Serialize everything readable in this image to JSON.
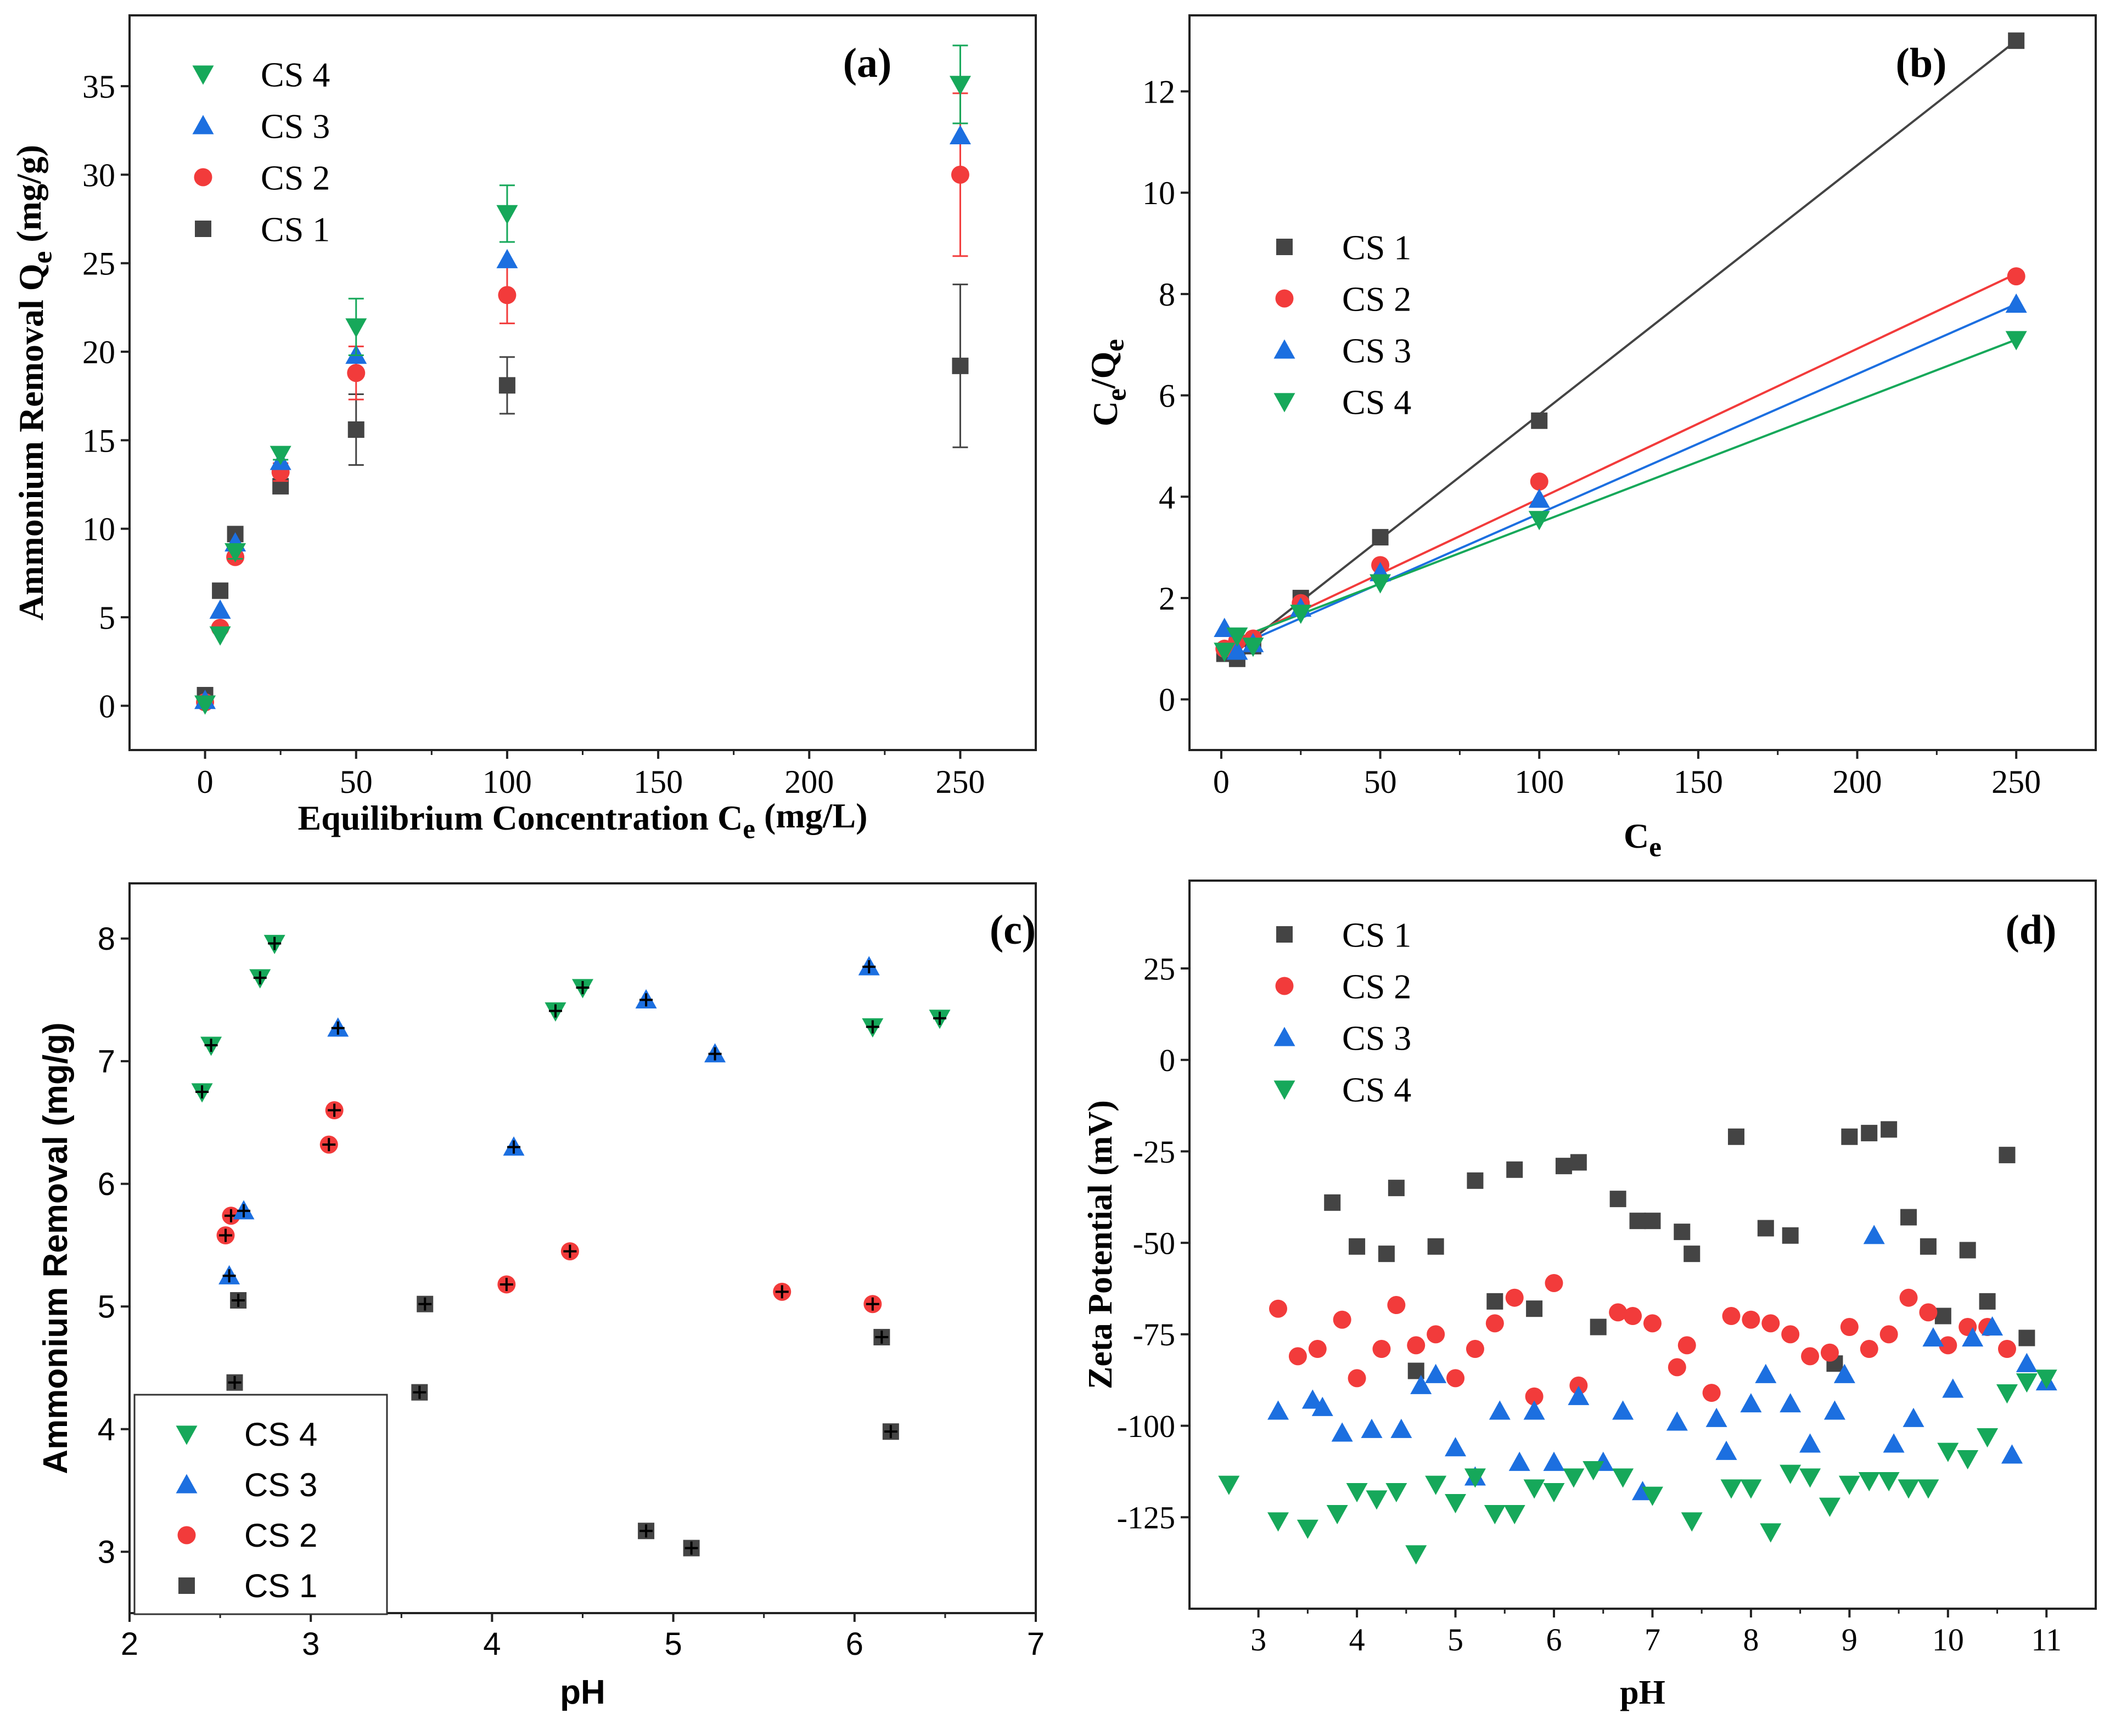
{
  "colors": {
    "cs1": "#444444",
    "cs2": "#f23b3b",
    "cs3": "#1c6fe0",
    "cs4": "#16a85a",
    "cross": "#000000"
  },
  "chart_data": [
    {
      "id": "a",
      "type": "scatter",
      "panel_label": "(a)",
      "xlabel": "Equilibrium Concentration C_e (mg/L)",
      "ylabel": "Ammonium Removal Q_e (mg/g)",
      "xlim": [
        -25,
        275
      ],
      "ylim": [
        -2.5,
        39
      ],
      "xticks": [
        0,
        50,
        100,
        150,
        200,
        250
      ],
      "yticks": [
        0,
        5,
        10,
        15,
        20,
        25,
        30,
        35
      ],
      "legend": [
        "CS 4",
        "CS 3",
        "CS 2",
        "CS 1"
      ],
      "legend_position": "top-left",
      "series": [
        {
          "name": "CS 1",
          "marker": "square",
          "x": [
            0,
            5,
            10,
            25,
            50,
            100,
            250
          ],
          "y": [
            0.6,
            6.5,
            9.7,
            12.4,
            15.6,
            18.1,
            19.2
          ],
          "err": [
            0,
            0,
            0,
            0.4,
            2.0,
            1.6,
            4.6
          ]
        },
        {
          "name": "CS 2",
          "marker": "circle",
          "x": [
            0,
            5,
            10,
            25,
            50,
            100,
            250
          ],
          "y": [
            0.2,
            4.4,
            8.4,
            13.2,
            18.8,
            23.2,
            30.0
          ],
          "err": [
            0,
            0,
            0,
            0.5,
            1.5,
            1.6,
            4.6
          ]
        },
        {
          "name": "CS 3",
          "marker": "triangle-up",
          "x": [
            0,
            5,
            10,
            25,
            50,
            100,
            250
          ],
          "y": [
            0.3,
            5.4,
            9.2,
            13.8,
            19.8,
            25.2,
            32.2
          ],
          "err": [
            0,
            0,
            0,
            0,
            0,
            0,
            0
          ]
        },
        {
          "name": "CS 4",
          "marker": "triangle-down",
          "x": [
            0,
            5,
            10,
            25,
            50,
            100,
            250
          ],
          "y": [
            0.1,
            4.0,
            8.7,
            14.2,
            21.4,
            27.8,
            35.1
          ],
          "err": [
            0,
            0,
            0.4,
            0.3,
            1.6,
            1.6,
            2.2
          ]
        }
      ]
    },
    {
      "id": "b",
      "type": "scatter",
      "panel_label": "(b)",
      "xlabel": "C_e",
      "ylabel": "C_e/Q_e",
      "xlim": [
        -10,
        275
      ],
      "ylim": [
        -1,
        13.5
      ],
      "xticks": [
        0,
        50,
        100,
        150,
        200,
        250
      ],
      "yticks": [
        0,
        2,
        4,
        6,
        8,
        10,
        12
      ],
      "legend": [
        "CS 1",
        "CS 2",
        "CS 3",
        "CS 4"
      ],
      "legend_position": "center-left",
      "series": [
        {
          "name": "CS 1",
          "marker": "square",
          "x": [
            1,
            5,
            10,
            25,
            50,
            100,
            250
          ],
          "y": [
            0.9,
            0.8,
            1.05,
            2.0,
            3.2,
            5.5,
            13.0
          ],
          "fit": [
            [
              5,
              0.95
            ],
            [
              250,
              13.0
            ]
          ]
        },
        {
          "name": "CS 2",
          "marker": "circle",
          "x": [
            1,
            5,
            10,
            25,
            50,
            100,
            250
          ],
          "y": [
            1.0,
            1.15,
            1.2,
            1.9,
            2.65,
            4.3,
            8.35
          ],
          "fit": [
            [
              5,
              1.15
            ],
            [
              250,
              8.4
            ]
          ]
        },
        {
          "name": "CS 3",
          "marker": "triangle-up",
          "x": [
            1,
            5,
            10,
            25,
            50,
            100,
            250
          ],
          "y": [
            1.4,
            0.95,
            1.1,
            1.8,
            2.5,
            3.95,
            7.8
          ],
          "fit": [
            [
              5,
              1.05
            ],
            [
              250,
              7.8
            ]
          ]
        },
        {
          "name": "CS 4",
          "marker": "triangle-down",
          "x": [
            1,
            5,
            10,
            25,
            50,
            100,
            250
          ],
          "y": [
            0.95,
            1.25,
            1.05,
            1.7,
            2.3,
            3.55,
            7.1
          ],
          "fit": [
            [
              5,
              1.2
            ],
            [
              250,
              7.1
            ]
          ]
        }
      ]
    },
    {
      "id": "c",
      "type": "scatter",
      "panel_label": "(c)",
      "xlabel": "pH",
      "ylabel": "Ammonium Removal (mg/g)",
      "xlim": [
        2,
        7
      ],
      "ylim": [
        2.5,
        8.45
      ],
      "xticks": [
        2,
        3,
        4,
        5,
        6,
        7
      ],
      "yticks": [
        3,
        4,
        5,
        6,
        7,
        8
      ],
      "legend": [
        "CS 4",
        "CS 3",
        "CS 2",
        "CS 1"
      ],
      "legend_position": "bottom-left",
      "series": [
        {
          "name": "CS 1",
          "marker": "square",
          "x": [
            2.58,
            2.6,
            3.6,
            3.63,
            4.85,
            5.1,
            6.15,
            6.2
          ],
          "y": [
            4.38,
            5.05,
            4.3,
            5.02,
            3.17,
            3.03,
            4.75,
            3.98
          ]
        },
        {
          "name": "CS 2",
          "marker": "circle",
          "x": [
            2.53,
            2.56,
            3.1,
            3.13,
            4.08,
            4.43,
            5.6,
            6.1
          ],
          "y": [
            5.58,
            5.74,
            6.32,
            6.6,
            5.18,
            5.45,
            5.12,
            5.02
          ]
        },
        {
          "name": "CS 3",
          "marker": "triangle-up",
          "x": [
            2.55,
            2.63,
            3.15,
            4.12,
            4.85,
            5.23,
            6.08
          ],
          "y": [
            5.25,
            5.78,
            7.27,
            6.3,
            7.5,
            7.06,
            7.77
          ]
        },
        {
          "name": "CS 4",
          "marker": "triangle-down",
          "x": [
            2.4,
            2.45,
            2.72,
            2.8,
            4.35,
            4.5,
            6.1,
            6.47
          ],
          "y": [
            6.75,
            7.13,
            7.68,
            7.96,
            7.41,
            7.6,
            7.28,
            7.35
          ]
        }
      ]
    },
    {
      "id": "d",
      "type": "scatter",
      "panel_label": "(d)",
      "xlabel": "pH",
      "ylabel": "Zeta Potential (mV)",
      "xlim": [
        2.3,
        11.5
      ],
      "ylim": [
        -150,
        49
      ],
      "xticks": [
        3,
        4,
        5,
        6,
        7,
        8,
        9,
        10,
        11
      ],
      "yticks": [
        25,
        0,
        -25,
        -50,
        -75,
        -100,
        -125
      ],
      "legend": [
        "CS 1",
        "CS 2",
        "CS 3",
        "CS 4"
      ],
      "legend_position": "top-left",
      "series": [
        {
          "name": "CS 1",
          "marker": "square",
          "x": [
            3.75,
            4.0,
            4.3,
            4.4,
            4.6,
            4.8,
            5.2,
            5.4,
            5.6,
            5.8,
            6.1,
            6.25,
            6.45,
            6.65,
            6.85,
            7.0,
            7.3,
            7.4,
            7.85,
            8.15,
            8.4,
            8.85,
            9.0,
            9.2,
            9.4,
            9.6,
            9.8,
            9.95,
            10.2,
            10.4,
            10.6,
            10.8
          ],
          "y": [
            -39,
            -51,
            -53,
            -35,
            -85,
            -51,
            -33,
            -66,
            -30,
            -68,
            -29,
            -28,
            -73,
            -38,
            -44,
            -44,
            -47,
            -53,
            -21,
            -46,
            -48,
            -83,
            -21,
            -20,
            -19,
            -43,
            -51,
            -70,
            -52,
            -66,
            -26,
            -76
          ]
        },
        {
          "name": "CS 2",
          "marker": "circle",
          "x": [
            3.2,
            3.4,
            3.6,
            3.85,
            4.0,
            4.25,
            4.4,
            4.6,
            4.8,
            5.0,
            5.2,
            5.4,
            5.6,
            5.8,
            6.0,
            6.25,
            6.65,
            6.8,
            7.0,
            7.25,
            7.35,
            7.6,
            7.8,
            8.0,
            8.2,
            8.4,
            8.6,
            8.8,
            9.0,
            9.2,
            9.4,
            9.6,
            9.8,
            10.0,
            10.2,
            10.4,
            10.6
          ],
          "y": [
            -68,
            -81,
            -79,
            -71,
            -87,
            -79,
            -67,
            -78,
            -75,
            -87,
            -79,
            -72,
            -65,
            -92,
            -61,
            -89,
            -69,
            -70,
            -72,
            -84,
            -78,
            -91,
            -70,
            -71,
            -72,
            -75,
            -81,
            -80,
            -73,
            -79,
            -75,
            -65,
            -69,
            -78,
            -73,
            -73,
            -79
          ]
        },
        {
          "name": "CS 3",
          "marker": "triangle-up",
          "x": [
            3.2,
            3.55,
            3.65,
            3.85,
            4.15,
            4.45,
            4.65,
            4.8,
            5.0,
            5.2,
            5.45,
            5.65,
            5.8,
            6.0,
            6.25,
            6.5,
            6.7,
            6.9,
            7.25,
            7.65,
            7.75,
            8.0,
            8.15,
            8.4,
            8.6,
            8.85,
            8.95,
            9.25,
            9.45,
            9.65,
            9.85,
            10.05,
            10.25,
            10.45,
            10.65,
            10.8,
            11.0
          ],
          "y": [
            -96,
            -93,
            -95,
            -102,
            -101,
            -101,
            -89,
            -86,
            -106,
            -114,
            -96,
            -110,
            -96,
            -110,
            -92,
            -110,
            -96,
            -118,
            -99,
            -98,
            -107,
            -94,
            -86,
            -94,
            -105,
            -96,
            -86,
            -48,
            -105,
            -98,
            -76,
            -90,
            -76,
            -73,
            -108,
            -83,
            -88
          ]
        },
        {
          "name": "CS 4",
          "marker": "triangle-down",
          "x": [
            2.7,
            3.2,
            3.5,
            3.8,
            4.0,
            4.2,
            4.4,
            4.6,
            4.8,
            5.0,
            5.2,
            5.4,
            5.6,
            5.8,
            6.0,
            6.2,
            6.4,
            6.7,
            7.0,
            7.4,
            7.8,
            8.0,
            8.2,
            8.4,
            8.6,
            8.8,
            9.0,
            9.2,
            9.4,
            9.6,
            9.8,
            10.0,
            10.2,
            10.4,
            10.6,
            10.8,
            11.0
          ],
          "y": [
            -116,
            -126,
            -128,
            -124,
            -118,
            -120,
            -118,
            -135,
            -116,
            -121,
            -114,
            -124,
            -124,
            -117,
            -118,
            -114,
            -112,
            -114,
            -119,
            -126,
            -117,
            -117,
            -129,
            -113,
            -114,
            -122,
            -116,
            -115,
            -115,
            -117,
            -117,
            -107,
            -109,
            -103,
            -91,
            -88,
            -87
          ]
        }
      ]
    }
  ]
}
